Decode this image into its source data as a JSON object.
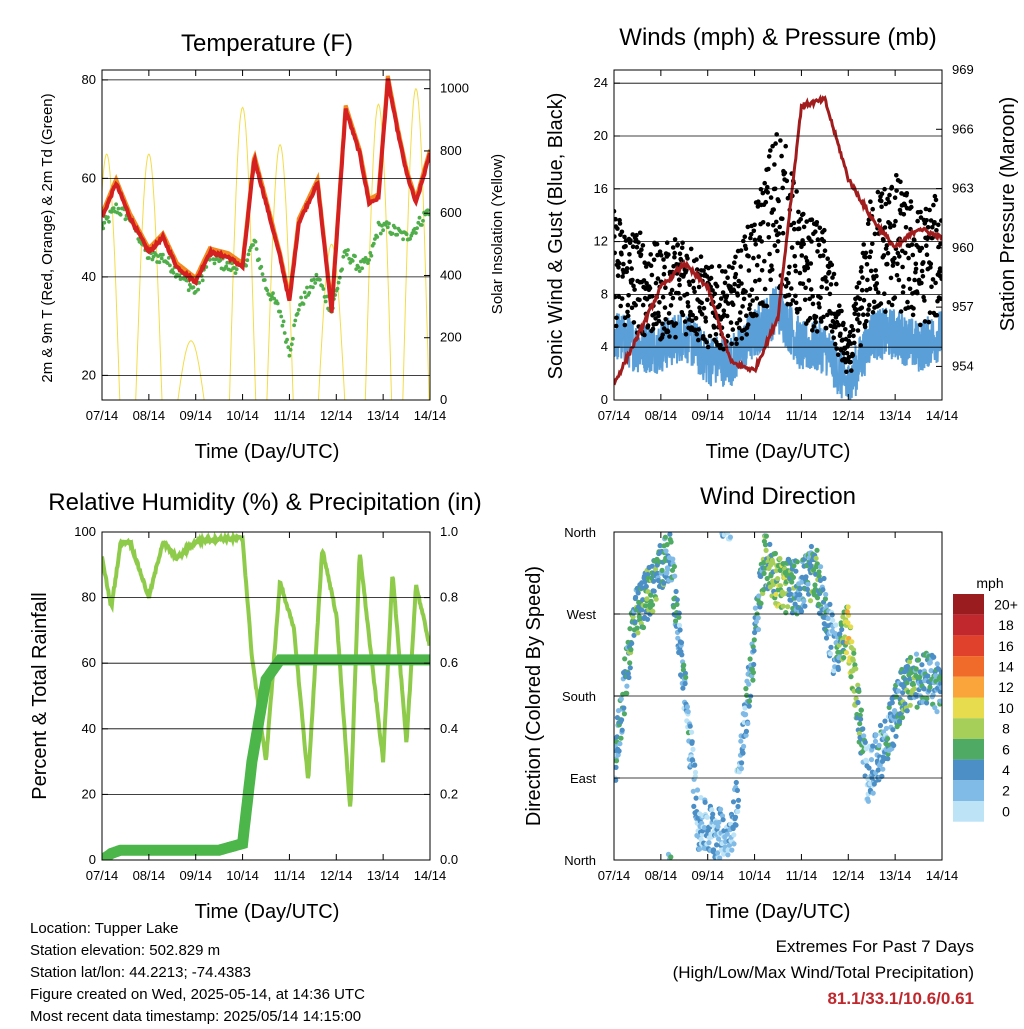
{
  "days": [
    "07/14",
    "08/14",
    "09/14",
    "10/14",
    "11/14",
    "12/14",
    "13/14",
    "14/14"
  ],
  "temperature": {
    "title": "Temperature (F)",
    "xlabel": "Time (Day/UTC)",
    "ylabel_left": "2m & 9m T (Red, Orange) & 2m Td (Green)",
    "ylabel_right": "Solar Insolation (Yellow)",
    "ylim": [
      15,
      82
    ],
    "y2lim": [
      0,
      1060
    ],
    "left_ticks": [
      "20",
      "40",
      "60",
      "80"
    ],
    "right_ticks": [
      "0",
      "200",
      "400",
      "600",
      "800",
      "1000"
    ]
  },
  "winds": {
    "title": "Winds (mph) & Pressure (mb)",
    "xlabel": "Time (Day/UTC)",
    "ylabel_left": "Sonic Wind & Gust (Blue, Black)",
    "ylabel_right": "Station Pressure (Maroon)",
    "ylim": [
      0,
      25
    ],
    "y2lim": [
      952.3,
      969
    ],
    "left_ticks": [
      "0",
      "4",
      "8",
      "12",
      "16",
      "20",
      "24"
    ],
    "right_ticks": [
      "954",
      "957",
      "960",
      "963",
      "966",
      "969"
    ]
  },
  "humidity": {
    "title": "Relative Humidity (%) & Precipitation (in)",
    "xlabel": "Time (Day/UTC)",
    "ylabel_left": "Percent & Total Rainfall",
    "ylim": [
      0,
      100
    ],
    "y2lim": [
      0,
      1.0
    ],
    "left_ticks": [
      "0",
      "20",
      "40",
      "60",
      "80",
      "100"
    ],
    "right_ticks": [
      "0.0",
      "0.2",
      "0.4",
      "0.6",
      "0.8",
      "1.0"
    ]
  },
  "direction": {
    "title": "Wind Direction",
    "xlabel": "Time (Day/UTC)",
    "ylabel": "Direction (Colored By Speed)",
    "ticks": [
      "North",
      "East",
      "South",
      "West",
      "North"
    ],
    "legend_title": "mph",
    "legend_labels": [
      "20+",
      "18",
      "16",
      "14",
      "12",
      "10",
      "8",
      "6",
      "4",
      "2",
      "0"
    ],
    "legend_colors": [
      "#9a1c1f",
      "#c0282d",
      "#e0412c",
      "#f06a2a",
      "#f9a53b",
      "#e6dc4e",
      "#a6cf5a",
      "#4fab63",
      "#4b8fc6",
      "#7fbbe6",
      "#bde4f6"
    ]
  },
  "colors": {
    "t2m": "#d42020",
    "t9m": "#f28a20",
    "td": "#4fae4a",
    "solar": "#f3dc4a",
    "gust": "#000000",
    "wind": "#5a9fd8",
    "pressure": "#a11c1c",
    "rh": "#8fcb4b",
    "precip": "#4cb64b"
  },
  "chart_data": [
    {
      "type": "line",
      "title": "Temperature (F)",
      "xlabel": "Time (Day/UTC)",
      "ylabel": "2m & 9m T (Red, Orange) & 2m Td (Green)",
      "y2label": "Solar Insolation (Yellow)",
      "x": [
        0,
        0.3,
        0.6,
        1.0,
        1.3,
        1.6,
        2.0,
        2.3,
        2.7,
        3.0,
        3.25,
        3.5,
        3.8,
        4.0,
        4.2,
        4.6,
        4.9,
        5.2,
        5.5,
        5.7,
        5.9,
        6.1,
        6.3,
        6.5,
        6.7,
        7.0
      ],
      "series": [
        {
          "name": "2m T",
          "values": [
            52,
            59,
            52,
            45,
            48,
            42,
            39,
            45,
            44,
            42,
            64,
            55,
            44,
            35,
            51,
            59,
            33,
            74,
            65,
            55,
            56,
            80,
            70,
            61,
            55,
            65
          ]
        },
        {
          "name": "2m Td",
          "values": [
            50,
            54,
            52,
            44,
            44,
            41,
            37,
            44,
            42,
            42,
            47,
            38,
            33,
            25,
            34,
            40,
            33,
            45,
            42,
            43,
            50,
            50,
            49,
            48,
            50,
            54
          ]
        }
      ],
      "solar_peaks": [
        {
          "x": 0.1,
          "value": 790
        },
        {
          "x": 1.0,
          "value": 790
        },
        {
          "x": 1.9,
          "value": 190
        },
        {
          "x": 3.0,
          "value": 940
        },
        {
          "x": 3.8,
          "value": 820
        },
        {
          "x": 4.9,
          "value": 500
        },
        {
          "x": 5.9,
          "value": 950
        },
        {
          "x": 6.7,
          "value": 1000
        }
      ],
      "ylim": [
        15,
        82
      ],
      "y2lim": [
        0,
        1060
      ]
    },
    {
      "type": "scatter",
      "title": "Winds (mph) & Pressure (mb)",
      "xlabel": "Time (Day/UTC)",
      "ylabel": "Sonic Wind & Gust (Blue, Black)",
      "y2label": "Station Pressure (Maroon)",
      "x": [
        0,
        0.5,
        1.0,
        1.5,
        2.0,
        2.5,
        3.0,
        3.5,
        4.0,
        4.5,
        5.0,
        5.5,
        6.0,
        6.5,
        7.0
      ],
      "series": [
        {
          "name": "Sonic Wind",
          "values": [
            5,
            4,
            4,
            5,
            3,
            3,
            5,
            7,
            4,
            4,
            1,
            5,
            5,
            4,
            5
          ]
        },
        {
          "name": "Gust",
          "values": [
            10,
            9,
            8,
            9,
            7,
            7,
            10,
            15,
            10,
            9,
            3,
            11,
            12,
            10,
            11
          ]
        },
        {
          "name": "Station Pressure",
          "values": [
            953.1,
            955.5,
            958.0,
            959.2,
            958.0,
            954.2,
            953.8,
            956.5,
            967.2,
            967.5,
            963.5,
            961.5,
            960.0,
            961.0,
            960.5
          ]
        }
      ],
      "ylim": [
        0,
        25
      ],
      "y2lim": [
        952.3,
        969
      ]
    },
    {
      "type": "line",
      "title": "Relative Humidity (%) & Precipitation (in)",
      "xlabel": "Time (Day/UTC)",
      "ylabel": "Percent & Total Rainfall",
      "x": [
        0,
        0.2,
        0.4,
        0.6,
        1.0,
        1.3,
        1.6,
        2.0,
        2.5,
        3.0,
        3.2,
        3.5,
        3.8,
        4.1,
        4.4,
        4.7,
        5.0,
        5.3,
        5.5,
        5.7,
        6.0,
        6.2,
        6.5,
        6.7,
        7.0
      ],
      "series": [
        {
          "name": "Relative Humidity",
          "values": [
            92,
            77,
            97,
            97,
            80,
            97,
            92,
            97,
            98,
            98,
            62,
            30,
            85,
            70,
            24,
            95,
            75,
            15,
            94,
            68,
            30,
            88,
            35,
            84,
            65
          ]
        },
        {
          "name": "Total Precipitation",
          "values": [
            0,
            0.02,
            0.03,
            0.03,
            0.03,
            0.03,
            0.03,
            0.03,
            0.03,
            0.05,
            0.3,
            0.55,
            0.61,
            0.61,
            0.61,
            0.61,
            0.61,
            0.61,
            0.61,
            0.61,
            0.61,
            0.61,
            0.61,
            0.61,
            0.61
          ]
        }
      ],
      "ylim": [
        0,
        100
      ],
      "y2lim": [
        0,
        1.0
      ]
    },
    {
      "type": "scatter",
      "title": "Wind Direction",
      "xlabel": "Time (Day/UTC)",
      "ylabel": "Direction (Colored By Speed)",
      "x": [
        0,
        0.4,
        0.8,
        1.2,
        1.8,
        2.5,
        3.2,
        3.6,
        4.0,
        4.3,
        4.7,
        5.0,
        5.4,
        5.8,
        6.2,
        6.6,
        7.0
      ],
      "series": [
        {
          "name": "Direction (deg)",
          "values": [
            100,
            260,
            300,
            340,
            40,
            20,
            330,
            300,
            300,
            320,
            230,
            250,
            90,
            130,
            190,
            200,
            190
          ]
        },
        {
          "name": "Speed (mph)",
          "values": [
            3,
            5,
            6,
            4,
            2,
            2,
            5,
            8,
            3,
            6,
            2,
            10,
            2,
            3,
            6,
            4,
            3
          ]
        }
      ],
      "ylim": [
        0,
        360
      ]
    }
  ],
  "footer": {
    "location": "Location: Tupper Lake",
    "elevation": "Station elevation: 502.829 m",
    "latlon": "Station lat/lon: 44.2213; -74.4383",
    "created": "Figure created on Wed, 2025-05-14, at 14:36 UTC",
    "recent": "Most recent data timestamp: 2025/05/14 14:15:00"
  },
  "extremes": {
    "line1": "Extremes For Past 7 Days",
    "line2": "(High/Low/Max Wind/Total Precipitation)",
    "values": "81.1/33.1/10.6/0.61"
  }
}
